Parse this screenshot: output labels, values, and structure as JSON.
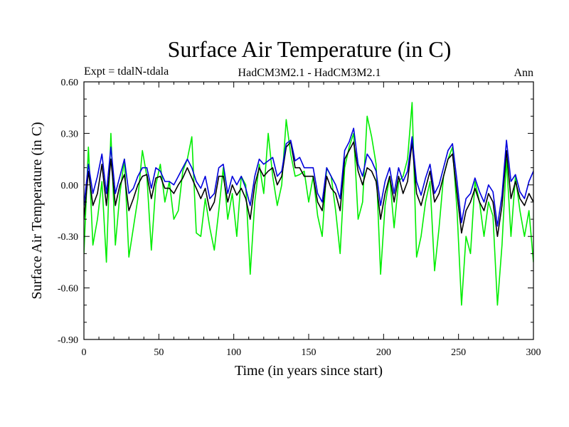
{
  "chart_data": {
    "type": "line",
    "title": "Surface Air Temperature (in C)",
    "subtitle_left": "Expt = tdalN-tdala",
    "subtitle_center": "HadCM3M2.1 - HadCM3M2.1",
    "subtitle_right": "Ann",
    "xlabel": "Time (in years since start)",
    "ylabel": "Surface Air Temperature (in C)",
    "xlim": [
      0,
      300
    ],
    "ylim": [
      -0.9,
      0.6
    ],
    "x_ticks": [
      0,
      50,
      100,
      150,
      200,
      250,
      300
    ],
    "x_tick_labels": [
      "0",
      "50",
      "100",
      "150",
      "200",
      "250",
      "300"
    ],
    "y_ticks": [
      -0.9,
      -0.6,
      -0.3,
      0.0,
      0.3,
      0.6
    ],
    "y_tick_labels": [
      "-0.90",
      "-0.60",
      "-0.30",
      "0.00",
      "0.30",
      "0.60"
    ],
    "grid": false,
    "series": [
      {
        "name": "series-1",
        "color": "#00ee00",
        "x_start": 0,
        "x_step": 3,
        "values": [
          -0.4,
          0.22,
          -0.35,
          -0.2,
          0.02,
          -0.45,
          0.3,
          -0.35,
          -0.05,
          0.15,
          -0.42,
          -0.25,
          -0.08,
          0.2,
          0.05,
          -0.38,
          0.0,
          0.12,
          -0.1,
          0.02,
          -0.2,
          -0.15,
          0.08,
          0.15,
          0.28,
          -0.28,
          -0.3,
          -0.08,
          -0.25,
          -0.38,
          -0.15,
          0.1,
          -0.2,
          -0.05,
          -0.3,
          0.05,
          0.0,
          -0.52,
          -0.1,
          0.12,
          -0.05,
          0.3,
          0.05,
          -0.12,
          0.0,
          0.38,
          0.18,
          0.05,
          0.06,
          0.08,
          -0.1,
          0.05,
          -0.18,
          -0.3,
          0.1,
          0.05,
          -0.15,
          -0.4,
          0.1,
          0.22,
          0.3,
          -0.2,
          -0.1,
          0.4,
          0.28,
          0.12,
          -0.52,
          -0.12,
          0.05,
          -0.25,
          0.02,
          0.05,
          0.15,
          0.48,
          -0.42,
          -0.3,
          -0.1,
          0.02,
          -0.5,
          -0.25,
          0.05,
          0.15,
          0.22,
          -0.15,
          -0.7,
          -0.3,
          -0.4,
          0.02,
          -0.1,
          -0.3,
          -0.1,
          -0.18,
          -0.7,
          -0.35,
          0.15,
          -0.3,
          0.05,
          -0.15,
          -0.3,
          -0.15,
          -0.45
        ]
      },
      {
        "name": "series-2",
        "color": "#000000",
        "x_start": 0,
        "x_step": 3,
        "values": [
          -0.2,
          0.08,
          -0.12,
          -0.05,
          0.12,
          -0.12,
          0.15,
          -0.12,
          0.0,
          0.06,
          -0.15,
          -0.08,
          0.0,
          0.05,
          0.06,
          -0.08,
          0.04,
          0.05,
          -0.02,
          -0.02,
          -0.05,
          0.0,
          0.04,
          0.1,
          0.04,
          -0.02,
          -0.08,
          -0.02,
          -0.15,
          -0.1,
          0.05,
          0.05,
          -0.1,
          0.0,
          -0.06,
          -0.02,
          -0.08,
          -0.2,
          0.0,
          0.1,
          0.05,
          0.08,
          0.1,
          0.0,
          0.05,
          0.22,
          0.25,
          0.1,
          0.1,
          0.05,
          0.05,
          0.05,
          -0.1,
          -0.15,
          0.05,
          -0.02,
          -0.05,
          -0.15,
          0.15,
          0.2,
          0.25,
          0.08,
          0.0,
          0.1,
          0.08,
          0.02,
          -0.2,
          -0.05,
          0.05,
          -0.1,
          0.05,
          -0.05,
          0.02,
          0.25,
          -0.05,
          -0.12,
          -0.02,
          0.08,
          -0.1,
          -0.05,
          0.05,
          0.15,
          0.18,
          -0.05,
          -0.28,
          -0.15,
          -0.1,
          -0.02,
          -0.1,
          -0.15,
          -0.05,
          -0.1,
          -0.3,
          -0.12,
          0.2,
          -0.08,
          0.02,
          -0.08,
          -0.12,
          -0.05,
          -0.1
        ]
      },
      {
        "name": "series-3",
        "color": "#0000dd",
        "x_start": 0,
        "x_step": 3,
        "values": [
          -0.12,
          0.12,
          -0.05,
          0.05,
          0.18,
          -0.05,
          0.22,
          -0.05,
          0.05,
          0.15,
          -0.05,
          -0.02,
          0.05,
          0.1,
          0.1,
          -0.02,
          0.1,
          0.08,
          0.02,
          0.02,
          0.0,
          0.05,
          0.1,
          0.15,
          0.1,
          0.02,
          -0.02,
          0.05,
          -0.08,
          -0.05,
          0.1,
          0.12,
          -0.05,
          0.05,
          0.0,
          0.05,
          -0.02,
          -0.12,
          0.05,
          0.15,
          0.12,
          0.14,
          0.16,
          0.05,
          0.08,
          0.24,
          0.26,
          0.14,
          0.16,
          0.1,
          0.1,
          0.1,
          -0.05,
          -0.1,
          0.1,
          0.05,
          0.0,
          -0.08,
          0.2,
          0.25,
          0.33,
          0.12,
          0.05,
          0.18,
          0.14,
          0.08,
          -0.12,
          0.02,
          0.1,
          -0.05,
          0.1,
          0.02,
          0.08,
          0.28,
          0.02,
          -0.06,
          0.04,
          0.12,
          -0.05,
          0.0,
          0.1,
          0.2,
          0.24,
          0.02,
          -0.22,
          -0.08,
          -0.05,
          0.04,
          -0.04,
          -0.1,
          0.0,
          -0.04,
          -0.24,
          -0.06,
          0.26,
          0.02,
          0.06,
          -0.04,
          -0.08,
          0.02,
          0.08
        ]
      }
    ]
  }
}
